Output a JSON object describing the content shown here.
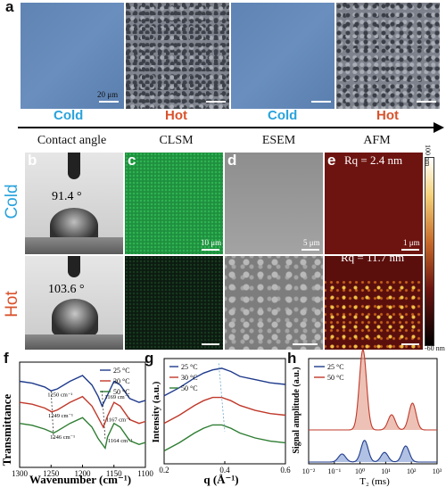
{
  "panel_a": {
    "label": "a",
    "scale": "20 μm",
    "conditions": [
      "Cold",
      "Hot",
      "Cold",
      "Hot"
    ]
  },
  "headers": [
    "Contact angle",
    "CLSM",
    "ESEM",
    "AFM"
  ],
  "row_labels": {
    "cold": "Cold",
    "hot": "Hot"
  },
  "panel_b": {
    "label": "b",
    "cold_angle": "91.4 °",
    "hot_angle": "103.6 °"
  },
  "panel_c": {
    "label": "c",
    "scale": "10 μm"
  },
  "panel_d": {
    "label": "d",
    "scale": "5 μm"
  },
  "panel_e": {
    "label": "e",
    "rq_cold": "Rq = 2.4 nm",
    "rq_hot": "Rq = 11.7 nm",
    "scale": "1 μm",
    "colorbar_top": "100 nm",
    "colorbar_bottom": "-60 nm"
  },
  "colors": {
    "cold_text": "#2aa3dc",
    "hot_text": "#d9532c",
    "s25": "#1f3b8c",
    "s30": "#c0392b",
    "s50": "#2e7d32"
  },
  "chart_data": [
    {
      "panel": "f",
      "type": "line",
      "xlabel": "Wavenumber (cm⁻¹)",
      "ylabel": "Transmittance",
      "xlim": [
        1300,
        1100
      ],
      "xticks": [
        "1300",
        "1250",
        "1200",
        "1150",
        "1100"
      ],
      "series": [
        {
          "name": "25 °C",
          "x": [
            1300,
            1280,
            1260,
            1250,
            1240,
            1220,
            1200,
            1185,
            1175,
            1169,
            1160,
            1150,
            1140,
            1125,
            1110,
            1100
          ],
          "y": [
            0.8,
            0.79,
            0.77,
            0.75,
            0.76,
            0.8,
            0.83,
            0.78,
            0.72,
            0.67,
            0.73,
            0.8,
            0.78,
            0.71,
            0.69,
            0.7
          ]
        },
        {
          "name": "30 °C",
          "x": [
            1300,
            1280,
            1260,
            1249,
            1240,
            1220,
            1200,
            1185,
            1175,
            1167,
            1160,
            1150,
            1140,
            1125,
            1110,
            1100
          ],
          "y": [
            0.69,
            0.68,
            0.66,
            0.64,
            0.65,
            0.69,
            0.72,
            0.67,
            0.61,
            0.56,
            0.62,
            0.69,
            0.67,
            0.6,
            0.58,
            0.59
          ]
        },
        {
          "name": "50 °C",
          "x": [
            1300,
            1280,
            1260,
            1246,
            1240,
            1220,
            1200,
            1185,
            1175,
            1164,
            1160,
            1150,
            1140,
            1125,
            1110,
            1100
          ],
          "y": [
            0.58,
            0.57,
            0.55,
            0.53,
            0.54,
            0.58,
            0.61,
            0.56,
            0.5,
            0.45,
            0.51,
            0.58,
            0.56,
            0.49,
            0.47,
            0.48
          ]
        }
      ],
      "annotations": [
        "1250 cm⁻¹",
        "1249 cm⁻¹",
        "1246 cm⁻¹",
        "1169 cm⁻¹",
        "1167 cm⁻¹",
        "1164 cm⁻¹"
      ]
    },
    {
      "panel": "g",
      "type": "line",
      "xlabel": "q (Å⁻¹)",
      "ylabel": "Intensity (a.u.)",
      "xlim": [
        0.2,
        0.6
      ],
      "xticks": [
        "0.2",
        "0.4",
        "0.6"
      ],
      "series": [
        {
          "name": "25 °C",
          "x": [
            0.2,
            0.25,
            0.3,
            0.33,
            0.36,
            0.39,
            0.42,
            0.45,
            0.5,
            0.55,
            0.6
          ],
          "y": [
            0.72,
            0.77,
            0.83,
            0.86,
            0.88,
            0.89,
            0.87,
            0.84,
            0.82,
            0.8,
            0.79
          ]
        },
        {
          "name": "30 °C",
          "x": [
            0.2,
            0.25,
            0.3,
            0.33,
            0.36,
            0.39,
            0.42,
            0.45,
            0.5,
            0.55,
            0.6
          ],
          "y": [
            0.55,
            0.6,
            0.66,
            0.69,
            0.71,
            0.71,
            0.69,
            0.66,
            0.63,
            0.61,
            0.6
          ]
        },
        {
          "name": "50 °C",
          "x": [
            0.2,
            0.25,
            0.3,
            0.33,
            0.36,
            0.39,
            0.42,
            0.45,
            0.5,
            0.55,
            0.6
          ],
          "y": [
            0.38,
            0.43,
            0.49,
            0.52,
            0.54,
            0.54,
            0.52,
            0.49,
            0.46,
            0.44,
            0.43
          ]
        }
      ]
    },
    {
      "panel": "h",
      "type": "line",
      "xlabel": "T₂ (ms)",
      "ylabel": "Signal amplitude (a.u.)",
      "xscale": "log",
      "xlim": [
        0.01,
        1000
      ],
      "xticks": [
        "10⁻²",
        "10⁻¹",
        "10⁰",
        "10¹",
        "10²",
        "10³"
      ],
      "series": [
        {
          "name": "25 °C",
          "peaks": [
            {
              "t2": 0.2,
              "amp": 0.1
            },
            {
              "t2": 1.5,
              "amp": 0.27
            },
            {
              "t2": 9,
              "amp": 0.12
            },
            {
              "t2": 60,
              "amp": 0.2
            }
          ]
        },
        {
          "name": "50 °C",
          "peaks": [
            {
              "t2": 1.3,
              "amp": 0.9
            },
            {
              "t2": 17,
              "amp": 0.17
            },
            {
              "t2": 110,
              "amp": 0.3
            }
          ]
        }
      ]
    }
  ]
}
